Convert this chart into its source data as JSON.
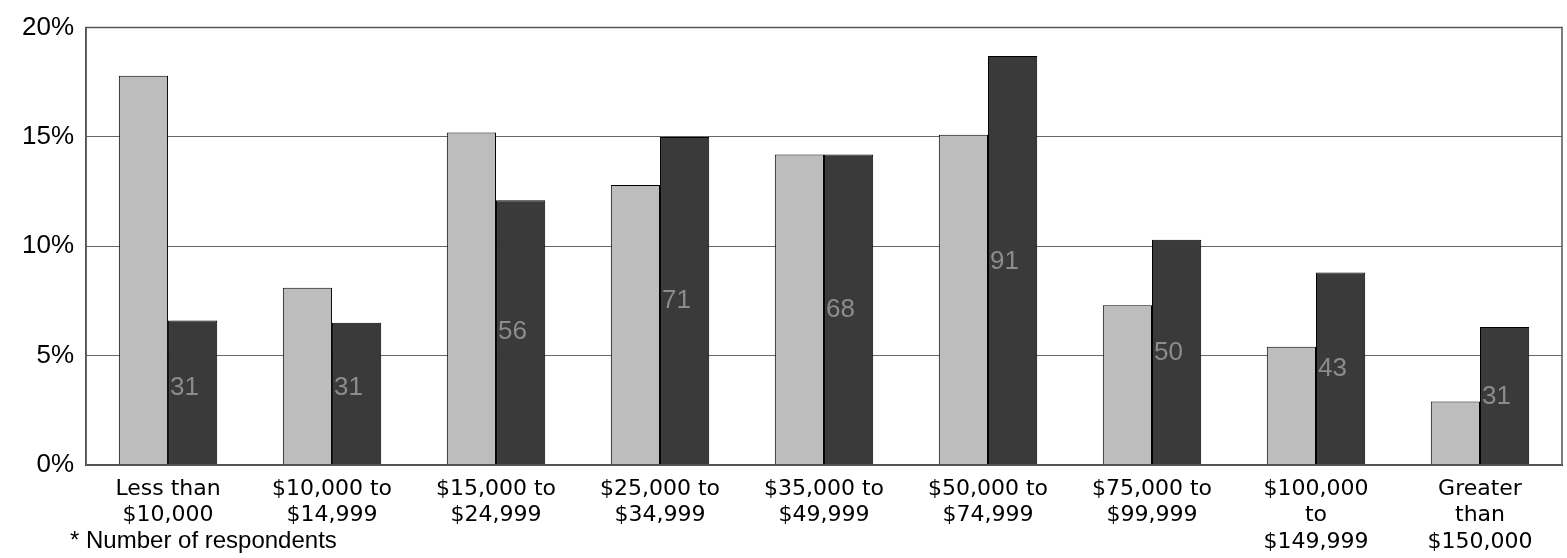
{
  "chart_data": {
    "type": "bar",
    "categories": [
      "Less than $10,000",
      "$10,000 to $14,999",
      "$15,000 to $24,999",
      "$25,000 to $34,999",
      "$35,000 to $49,999",
      "$50,000 to $74,999",
      "$75,000 to $99,999",
      "$100,000 to $149,999",
      "Greater than $150,000"
    ],
    "series": [
      {
        "color": "#bdbdbd",
        "values": [
          17.8,
          8.1,
          15.2,
          12.8,
          14.2,
          15.1,
          7.3,
          5.4,
          2.9
        ]
      },
      {
        "color": "#3a3a3a",
        "values": [
          6.6,
          6.5,
          12.1,
          15.0,
          14.2,
          18.7,
          10.3,
          8.8,
          6.3
        ]
      }
    ],
    "ylim": [
      0,
      20
    ],
    "yticks": [
      {
        "value": 0,
        "label": "0%"
      },
      {
        "value": 5,
        "label": "5%"
      },
      {
        "value": 10,
        "label": "10%"
      },
      {
        "value": 15,
        "label": "15%"
      },
      {
        "value": 20,
        "label": "20%"
      }
    ],
    "grid": "y",
    "legend": false,
    "annotations": [
      {
        "text": "31",
        "x": "Less than $10,000",
        "y": 3.5
      },
      {
        "text": "31",
        "x": "$10,000 to $14,999",
        "y": 3.5
      },
      {
        "text": "56",
        "x": "$15,000 to $24,999",
        "y": 6.1
      },
      {
        "text": "71",
        "x": "$25,000 to $34,999",
        "y": 7.5
      },
      {
        "text": "68",
        "x": "$35,000 to $49,999",
        "y": 7.1
      },
      {
        "text": "91",
        "x": "$50,000 to $74,999",
        "y": 9.3
      },
      {
        "text": "50",
        "x": "$75,000 to $99,999",
        "y": 5.1
      },
      {
        "text": "43",
        "x": "$100,000 to $149,999",
        "y": 4.4
      },
      {
        "text": "31",
        "x": "Greater than $150,000",
        "y": 3.1
      },
      "* Number of respondents"
    ]
  }
}
